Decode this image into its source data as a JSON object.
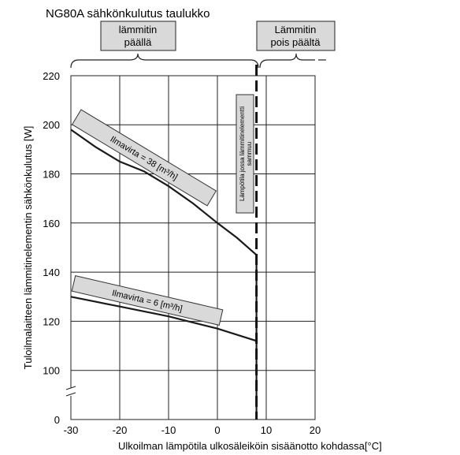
{
  "chart_data": {
    "type": "line",
    "title": "NG80A sähkönkulutus taulukko",
    "xlabel": "Ulkoilman lämpötila ulkosäleiköin sisäänotto kohdassa[°C]",
    "ylabel": "Tuloilmalaitteen lämmitinelementin sähkönkulutus [W]",
    "xlim": [
      -30,
      20
    ],
    "ylim": [
      0,
      220
    ],
    "x_ticks": [
      -30,
      -20,
      -10,
      0,
      10,
      20
    ],
    "y_ticks": [
      0,
      100,
      120,
      140,
      160,
      180,
      200,
      220
    ],
    "axis_break": "y between 0 and 100",
    "grid": true,
    "series": [
      {
        "name": "Ilmavirta = 38 [m³/h]",
        "x": [
          -30,
          -25,
          -20,
          -15,
          -10,
          -5,
          0,
          4,
          8
        ],
        "y": [
          198,
          191,
          185,
          181,
          175,
          168,
          160,
          154,
          147
        ]
      },
      {
        "name": "Ilmavirta = 6 [m³/h]",
        "x": [
          -30,
          -20,
          -10,
          0,
          8
        ],
        "y": [
          130,
          126,
          122,
          117,
          112
        ]
      }
    ],
    "cutoff_line": {
      "x": 8,
      "label": "Lämpötila jossa lämmitinelementti sammuu"
    },
    "regions": [
      {
        "label": "lämmitin päällä"
      },
      {
        "label": "Lämmitin pois päältä"
      }
    ]
  }
}
